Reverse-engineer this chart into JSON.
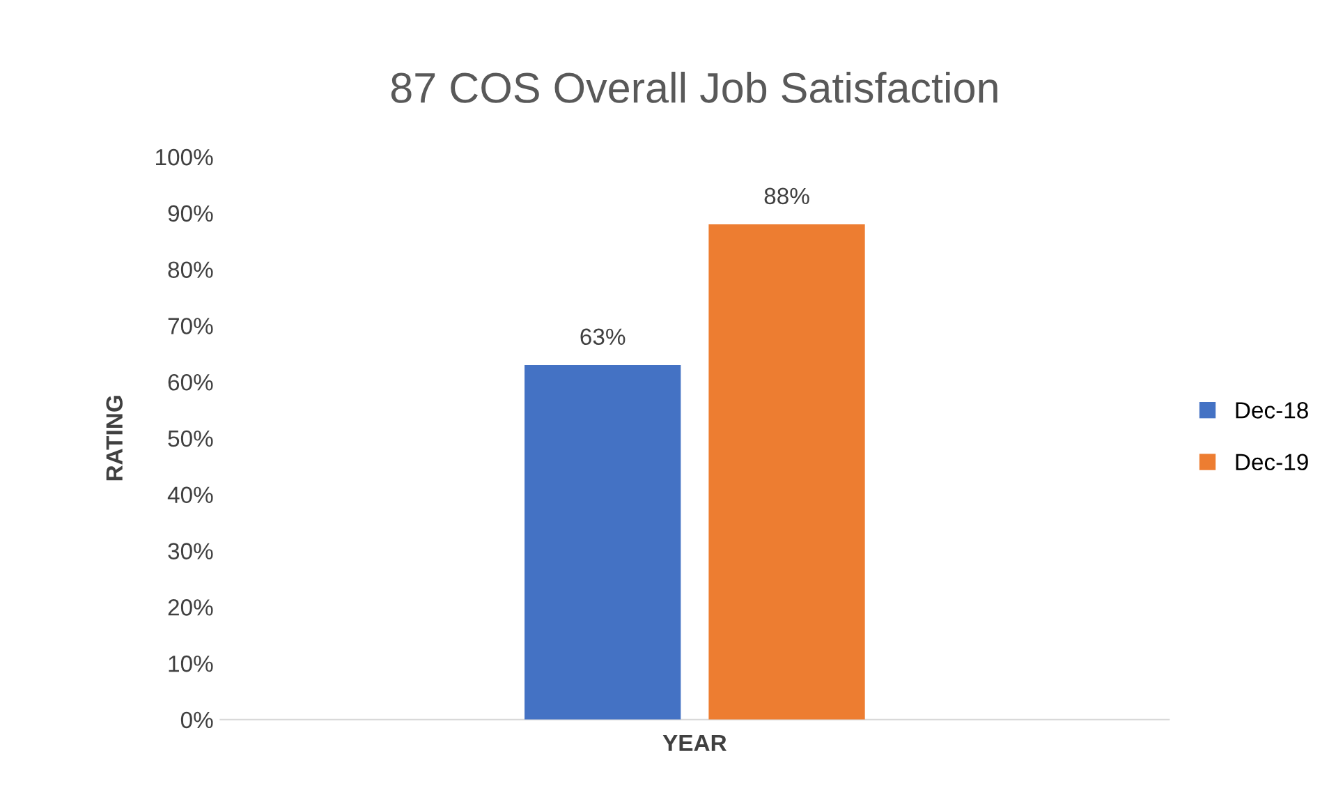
{
  "chart_data": {
    "type": "bar",
    "title": "87 COS Overall Job Satisfaction",
    "xlabel": "YEAR",
    "ylabel": "RATING",
    "categories": [
      null
    ],
    "series": [
      {
        "name": "Dec-18",
        "color": "#4472c4",
        "values": [
          63
        ],
        "value_labels": [
          "63%"
        ]
      },
      {
        "name": "Dec-19",
        "color": "#ed7d31",
        "values": [
          88
        ],
        "value_labels": [
          "88%"
        ]
      }
    ],
    "ylim": [
      0,
      100
    ],
    "yticks": [
      {
        "value": 0,
        "label": "0%"
      },
      {
        "value": 10,
        "label": "10%"
      },
      {
        "value": 20,
        "label": "20%"
      },
      {
        "value": 30,
        "label": "30%"
      },
      {
        "value": 40,
        "label": "40%"
      },
      {
        "value": 50,
        "label": "50%"
      },
      {
        "value": 60,
        "label": "60%"
      },
      {
        "value": 70,
        "label": "70%"
      },
      {
        "value": 80,
        "label": "80%"
      },
      {
        "value": 90,
        "label": "90%"
      },
      {
        "value": 100,
        "label": "100%"
      }
    ],
    "legend": "right",
    "grid": false
  }
}
